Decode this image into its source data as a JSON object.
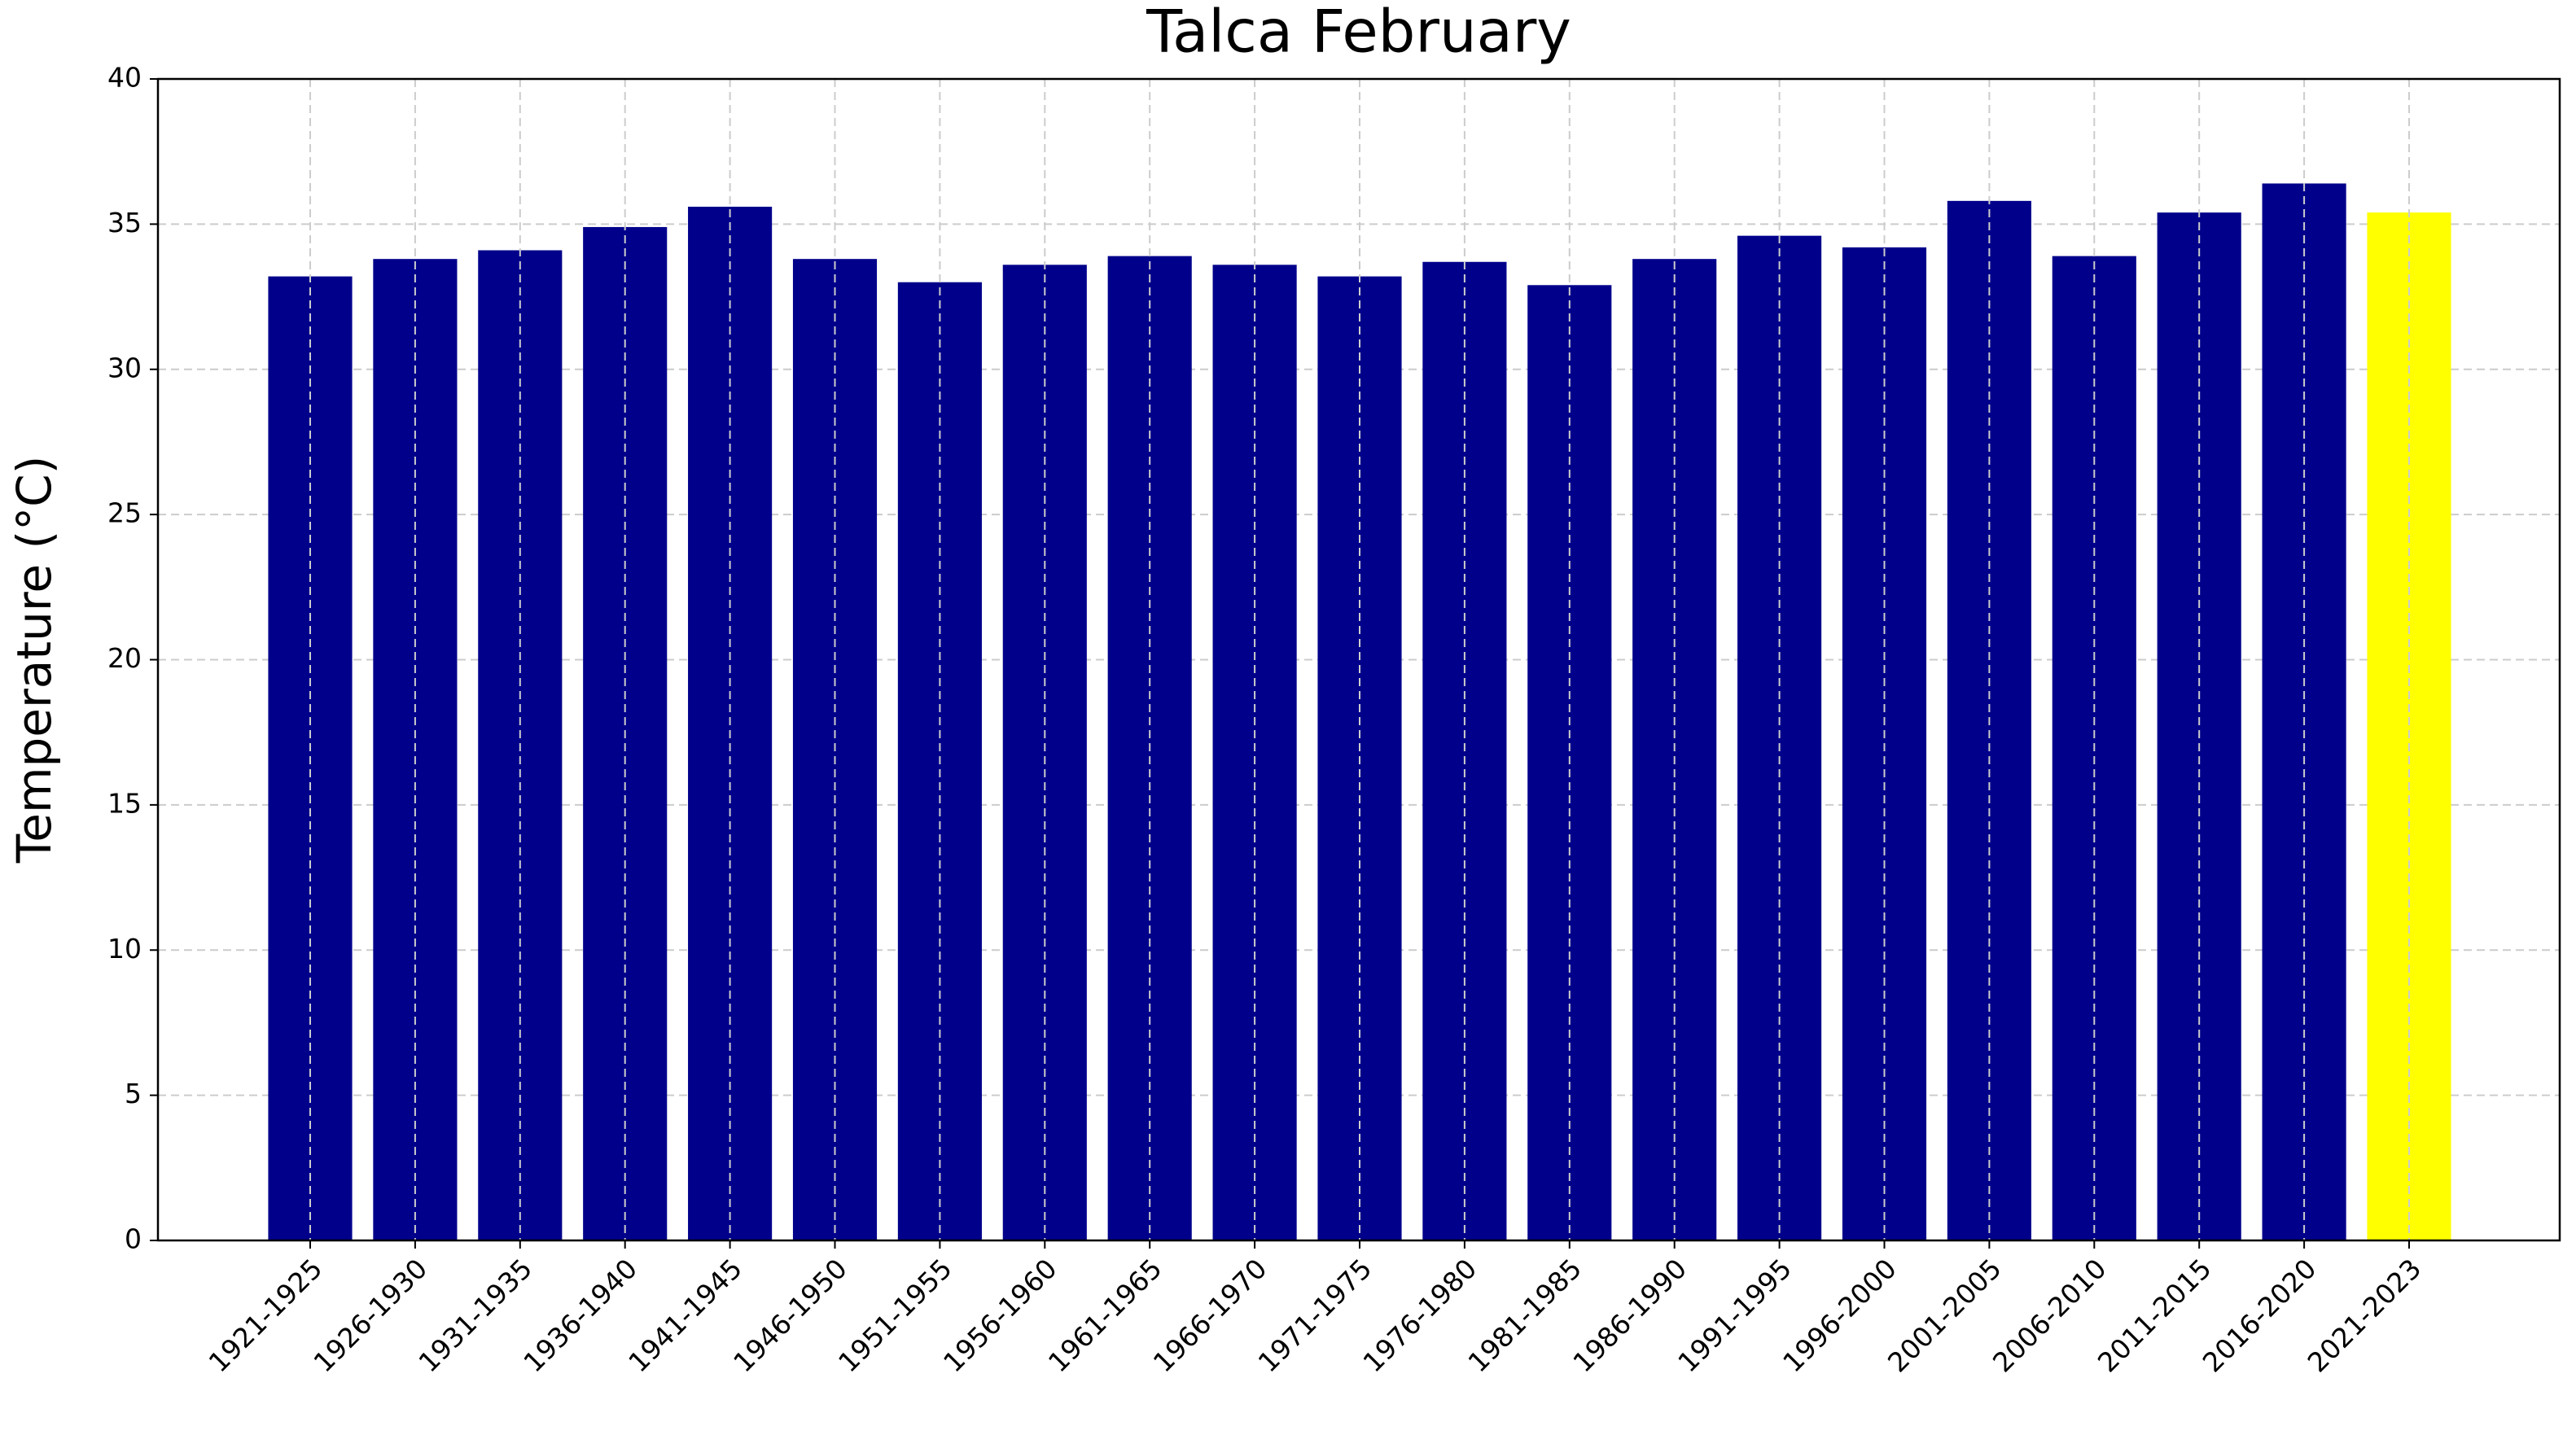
{
  "chart_data": {
    "type": "bar",
    "title": "Talca February",
    "ylabel": "Temperature (°C)",
    "categories": [
      "1921-1925",
      "1926-1930",
      "1931-1935",
      "1936-1940",
      "1941-1945",
      "1946-1950",
      "1951-1955",
      "1956-1960",
      "1961-1965",
      "1966-1970",
      "1971-1975",
      "1976-1980",
      "1981-1985",
      "1986-1990",
      "1991-1995",
      "1996-2000",
      "2001-2005",
      "2006-2010",
      "2011-2015",
      "2016-2020",
      "2021-2023"
    ],
    "values": [
      33.2,
      33.8,
      34.1,
      34.9,
      35.6,
      33.8,
      33.0,
      33.6,
      33.9,
      33.6,
      33.2,
      33.7,
      32.9,
      33.8,
      34.6,
      34.2,
      35.8,
      33.9,
      35.4,
      36.4,
      35.4
    ],
    "colors": [
      "#00008b",
      "#00008b",
      "#00008b",
      "#00008b",
      "#00008b",
      "#00008b",
      "#00008b",
      "#00008b",
      "#00008b",
      "#00008b",
      "#00008b",
      "#00008b",
      "#00008b",
      "#00008b",
      "#00008b",
      "#00008b",
      "#00008b",
      "#00008b",
      "#00008b",
      "#00008b",
      "#ffff00"
    ],
    "ylim": [
      0,
      40
    ],
    "yticks": [
      0,
      5,
      10,
      15,
      20,
      25,
      30,
      35,
      40
    ],
    "grid": true
  }
}
